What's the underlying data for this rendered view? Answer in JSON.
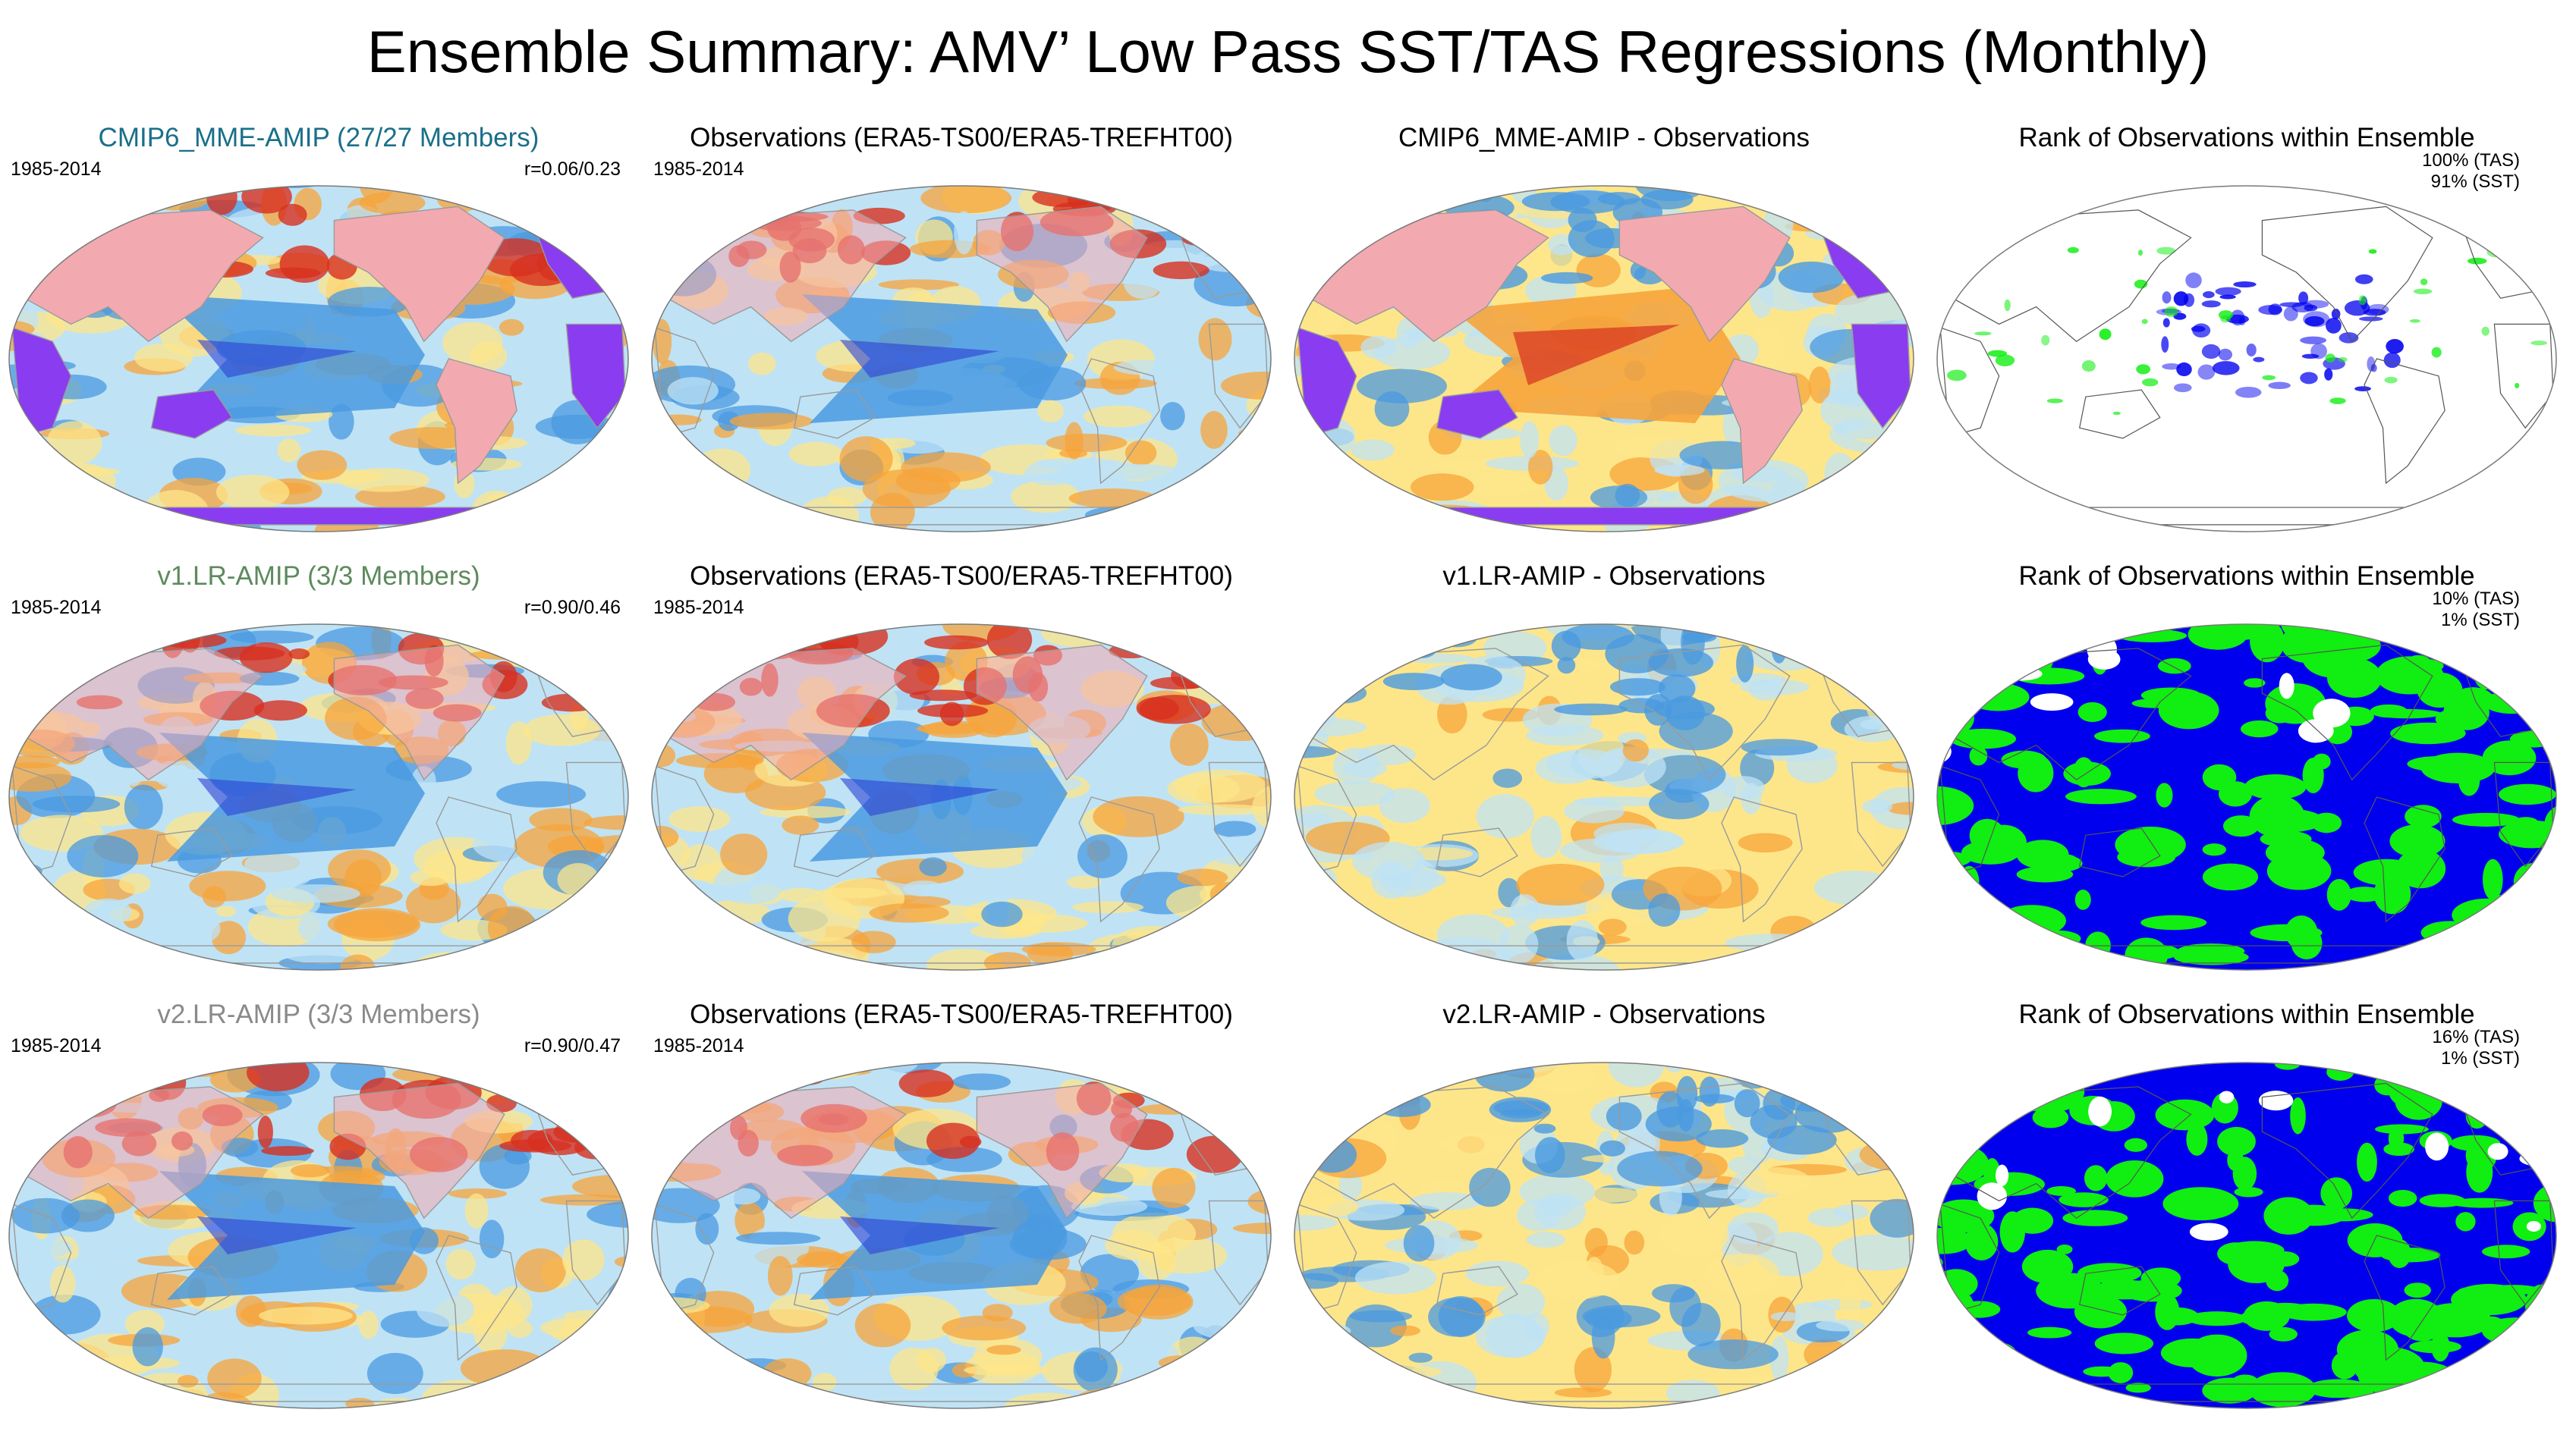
{
  "title": "Ensemble Summary: AMV’ Low Pass SST/TAS Regressions (Monthly)",
  "colors": {
    "warm_strong": "#d7301f",
    "warm": "#f7a43a",
    "warm_light": "#fde68a",
    "cool_light": "#bfe3f5",
    "cool": "#4a9ae0",
    "cool_strong": "#2b3fd6",
    "land_mask_pink": "#f2aab0",
    "land_mask_purple": "#8a3cf0",
    "rank_blue": "#0000ee",
    "rank_green": "#11ee11",
    "coast": "#9a9a9a"
  },
  "rows": [
    {
      "model": {
        "title": "CMIP6_MME-AMIP (27/27 Members)",
        "title_color": "#1a6f8a",
        "period": "1985-2014",
        "corr": "r=0.06/0.23"
      },
      "obs": {
        "title": "Observations (ERA5-TS00/ERA5-TREFHT00)",
        "period": "1985-2014"
      },
      "diff": {
        "title": "CMIP6_MME-AMIP - Observations"
      },
      "rank": {
        "title": "Rank of Observations within Ensemble",
        "tas": "100% (TAS)",
        "sst": "91% (SST)"
      }
    },
    {
      "model": {
        "title": "v1.LR-AMIP (3/3 Members)",
        "title_color": "#5d8a5d",
        "period": "1985-2014",
        "corr": "r=0.90/0.46"
      },
      "obs": {
        "title": "Observations (ERA5-TS00/ERA5-TREFHT00)",
        "period": "1985-2014"
      },
      "diff": {
        "title": "v1.LR-AMIP - Observations"
      },
      "rank": {
        "title": "Rank of Observations within Ensemble",
        "tas": "10% (TAS)",
        "sst": "1% (SST)"
      }
    },
    {
      "model": {
        "title": "v2.LR-AMIP (3/3 Members)",
        "title_color": "#8a8a8a",
        "period": "1985-2014",
        "corr": "r=0.90/0.47"
      },
      "obs": {
        "title": "Observations (ERA5-TS00/ERA5-TREFHT00)",
        "period": "1985-2014"
      },
      "diff": {
        "title": "v2.LR-AMIP - Observations"
      },
      "rank": {
        "title": "Rank of Observations within Ensemble",
        "tas": "16% (TAS)",
        "sst": "1% (SST)"
      }
    }
  ]
}
